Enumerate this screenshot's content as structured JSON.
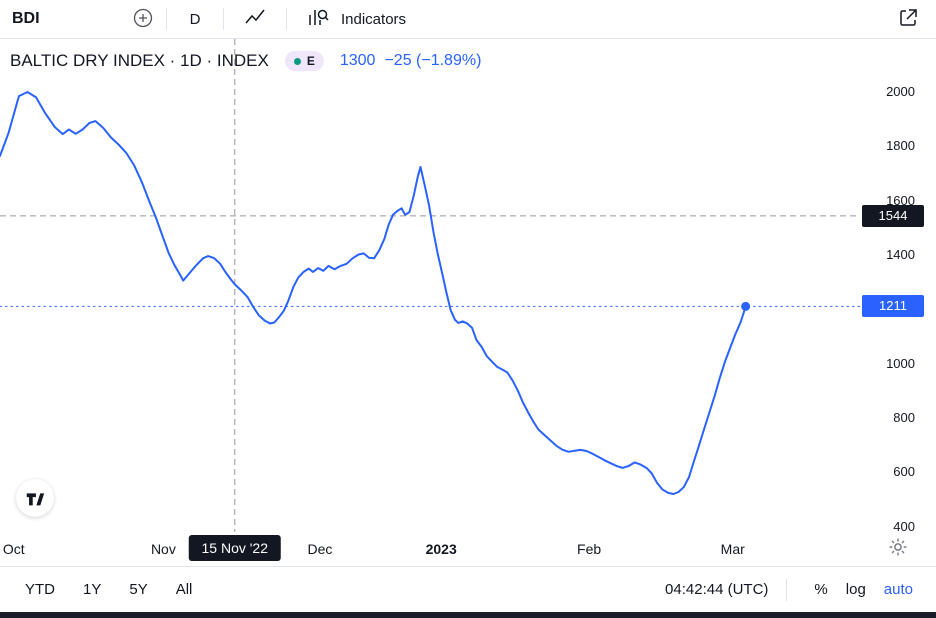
{
  "toolbar": {
    "symbol": "BDI",
    "timeframe": "D",
    "indicators_label": "Indicators"
  },
  "legend": {
    "title": "BALTIC DRY INDEX · 1D · INDEX",
    "market_badge": "E",
    "price": "1300",
    "change": "−25 (−1.89%)"
  },
  "price_axis": {
    "crosshair_price": "1544",
    "last_price": "1211"
  },
  "time_axis": {
    "crosshair_date": "15 Nov '22"
  },
  "footer": {
    "ranges": [
      "YTD",
      "1Y",
      "5Y",
      "All"
    ],
    "clock": "04:42:44 (UTC)",
    "percent_label": "%",
    "log_label": "log",
    "auto_label": "auto"
  },
  "colors": {
    "line": "#2962ff",
    "accent_blue": "#2962ff",
    "badge_dark": "#131722",
    "status_green": "#089981",
    "crosshair": "#9598a1",
    "divider": "#e0e3eb"
  },
  "icons": [
    "plus-circle-icon",
    "line-chart-icon",
    "indicators-icon",
    "export-icon",
    "gear-icon",
    "tradingview-logo",
    "status-dot-icon"
  ],
  "chart_data": {
    "type": "line",
    "title": "BALTIC DRY INDEX · 1D · INDEX",
    "series_name": "BDI",
    "grid": false,
    "legend_position": "top-left",
    "y_domain": {
      "top_value": 2195,
      "bottom_value": 381
    },
    "y_ticks": [
      2000,
      1800,
      1600,
      1400,
      1000,
      800,
      600,
      400
    ],
    "x_ticks": [
      {
        "label": "Oct",
        "x": 0.016,
        "bold": false
      },
      {
        "label": "Nov",
        "x": 0.19,
        "bold": false
      },
      {
        "label": "Dec",
        "x": 0.372,
        "bold": false
      },
      {
        "label": "2023",
        "x": 0.513,
        "bold": true
      },
      {
        "label": "Feb",
        "x": 0.685,
        "bold": false
      },
      {
        "label": "Mar",
        "x": 0.852,
        "bold": false
      }
    ],
    "crosshair": {
      "x": 0.273,
      "value": 1544,
      "date_label": "15 Nov '22",
      "value_at_date": 1300
    },
    "last": {
      "x": 0.867,
      "value": 1211
    },
    "points": [
      [
        0.0,
        1765
      ],
      [
        0.01,
        1850
      ],
      [
        0.022,
        1985
      ],
      [
        0.032,
        2000
      ],
      [
        0.042,
        1980
      ],
      [
        0.052,
        1925
      ],
      [
        0.064,
        1870
      ],
      [
        0.073,
        1845
      ],
      [
        0.08,
        1862
      ],
      [
        0.088,
        1846
      ],
      [
        0.096,
        1862
      ],
      [
        0.104,
        1886
      ],
      [
        0.111,
        1893
      ],
      [
        0.12,
        1868
      ],
      [
        0.129,
        1833
      ],
      [
        0.138,
        1806
      ],
      [
        0.147,
        1775
      ],
      [
        0.156,
        1730
      ],
      [
        0.165,
        1668
      ],
      [
        0.174,
        1595
      ],
      [
        0.181,
        1540
      ],
      [
        0.189,
        1470
      ],
      [
        0.196,
        1408
      ],
      [
        0.203,
        1362
      ],
      [
        0.209,
        1330
      ],
      [
        0.213,
        1306
      ],
      [
        0.22,
        1332
      ],
      [
        0.228,
        1362
      ],
      [
        0.236,
        1388
      ],
      [
        0.242,
        1396
      ],
      [
        0.249,
        1389
      ],
      [
        0.256,
        1368
      ],
      [
        0.262,
        1338
      ],
      [
        0.268,
        1312
      ],
      [
        0.273,
        1292
      ],
      [
        0.281,
        1268
      ],
      [
        0.288,
        1245
      ],
      [
        0.294,
        1212
      ],
      [
        0.301,
        1178
      ],
      [
        0.308,
        1158
      ],
      [
        0.314,
        1148
      ],
      [
        0.319,
        1152
      ],
      [
        0.324,
        1170
      ],
      [
        0.33,
        1195
      ],
      [
        0.335,
        1230
      ],
      [
        0.341,
        1282
      ],
      [
        0.347,
        1318
      ],
      [
        0.353,
        1338
      ],
      [
        0.359,
        1350
      ],
      [
        0.364,
        1338
      ],
      [
        0.37,
        1352
      ],
      [
        0.376,
        1342
      ],
      [
        0.382,
        1360
      ],
      [
        0.389,
        1348
      ],
      [
        0.396,
        1360
      ],
      [
        0.403,
        1368
      ],
      [
        0.41,
        1388
      ],
      [
        0.417,
        1402
      ],
      [
        0.423,
        1406
      ],
      [
        0.429,
        1390
      ],
      [
        0.435,
        1388
      ],
      [
        0.441,
        1418
      ],
      [
        0.447,
        1460
      ],
      [
        0.452,
        1512
      ],
      [
        0.457,
        1548
      ],
      [
        0.462,
        1562
      ],
      [
        0.467,
        1572
      ],
      [
        0.471,
        1548
      ],
      [
        0.476,
        1558
      ],
      [
        0.481,
        1618
      ],
      [
        0.486,
        1692
      ],
      [
        0.489,
        1724
      ],
      [
        0.494,
        1655
      ],
      [
        0.499,
        1582
      ],
      [
        0.504,
        1486
      ],
      [
        0.509,
        1405
      ],
      [
        0.514,
        1336
      ],
      [
        0.519,
        1264
      ],
      [
        0.524,
        1198
      ],
      [
        0.529,
        1162
      ],
      [
        0.533,
        1150
      ],
      [
        0.538,
        1156
      ],
      [
        0.543,
        1149
      ],
      [
        0.549,
        1132
      ],
      [
        0.554,
        1088
      ],
      [
        0.56,
        1062
      ],
      [
        0.566,
        1028
      ],
      [
        0.572,
        1008
      ],
      [
        0.578,
        989
      ],
      [
        0.584,
        979
      ],
      [
        0.59,
        968
      ],
      [
        0.596,
        938
      ],
      [
        0.602,
        902
      ],
      [
        0.608,
        858
      ],
      [
        0.614,
        822
      ],
      [
        0.62,
        788
      ],
      [
        0.626,
        758
      ],
      [
        0.633,
        738
      ],
      [
        0.64,
        718
      ],
      [
        0.647,
        698
      ],
      [
        0.654,
        684
      ],
      [
        0.661,
        676
      ],
      [
        0.668,
        680
      ],
      [
        0.675,
        683
      ],
      [
        0.682,
        679
      ],
      [
        0.689,
        669
      ],
      [
        0.696,
        657
      ],
      [
        0.703,
        645
      ],
      [
        0.71,
        634
      ],
      [
        0.717,
        624
      ],
      [
        0.724,
        617
      ],
      [
        0.731,
        624
      ],
      [
        0.738,
        637
      ],
      [
        0.745,
        629
      ],
      [
        0.752,
        616
      ],
      [
        0.758,
        596
      ],
      [
        0.764,
        562
      ],
      [
        0.77,
        538
      ],
      [
        0.777,
        525
      ],
      [
        0.783,
        521
      ],
      [
        0.789,
        528
      ],
      [
        0.795,
        546
      ],
      [
        0.801,
        582
      ],
      [
        0.807,
        642
      ],
      [
        0.813,
        702
      ],
      [
        0.819,
        762
      ],
      [
        0.825,
        822
      ],
      [
        0.831,
        882
      ],
      [
        0.837,
        948
      ],
      [
        0.843,
        1008
      ],
      [
        0.849,
        1058
      ],
      [
        0.855,
        1108
      ],
      [
        0.861,
        1152
      ],
      [
        0.865,
        1190
      ],
      [
        0.867,
        1211
      ]
    ]
  }
}
